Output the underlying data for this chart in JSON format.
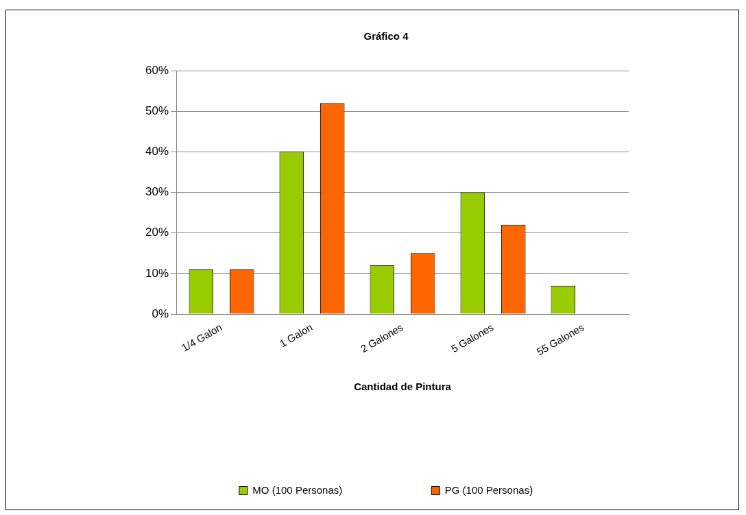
{
  "chart_data": {
    "type": "bar",
    "title": "Gráfico 4",
    "xlabel": "Cantidad de Pintura",
    "categories": [
      "1/4 Galon",
      "1 Galon",
      "2 Galones",
      "5 Galones",
      "55 Galones"
    ],
    "series": [
      {
        "name": "MO (100 Personas)",
        "color": "#99cc00",
        "values": [
          11,
          40,
          12,
          30,
          7
        ]
      },
      {
        "name": "PG (100 Personas)",
        "color": "#ff6600",
        "values": [
          11,
          52,
          15,
          22,
          null
        ]
      }
    ],
    "ylim": [
      0,
      60
    ],
    "yticks": [
      {
        "value": 0,
        "label": "0%"
      },
      {
        "value": 10,
        "label": "10%"
      },
      {
        "value": 20,
        "label": "20%"
      },
      {
        "value": 30,
        "label": "30%"
      },
      {
        "value": 40,
        "label": "40%"
      },
      {
        "value": 50,
        "label": "50%"
      },
      {
        "value": 60,
        "label": "60%"
      }
    ],
    "grid": "y",
    "legend": "bottom"
  }
}
